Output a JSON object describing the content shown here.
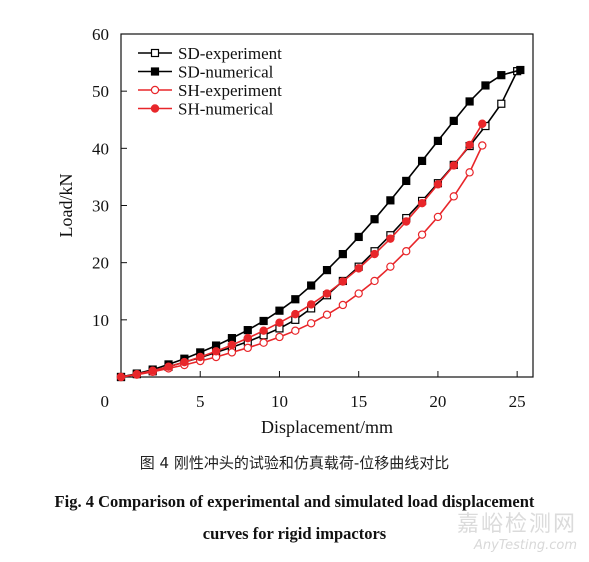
{
  "chart_data": {
    "type": "line",
    "xlabel": "Displacement/mm",
    "ylabel": "Load/kN",
    "xlim": [
      0,
      26
    ],
    "ylim": [
      0,
      60
    ],
    "xticks": [
      0,
      5,
      10,
      15,
      20,
      25
    ],
    "yticks": [
      10,
      20,
      30,
      40,
      50,
      60
    ],
    "legend": "top-left",
    "grid": false,
    "series": [
      {
        "name": "SD-experiment",
        "color": "#000000",
        "marker": "square-open",
        "x": [
          0,
          1,
          2,
          3,
          4,
          5,
          6,
          7,
          8,
          9,
          10,
          11,
          12,
          13,
          14,
          15,
          16,
          17,
          18,
          19,
          20,
          21,
          22,
          23,
          24,
          25
        ],
        "y": [
          0,
          0.5,
          1.0,
          1.8,
          2.6,
          3.4,
          4.3,
          5.2,
          6.2,
          7.3,
          8.5,
          10.0,
          12.0,
          14.3,
          16.8,
          19.3,
          22.0,
          24.8,
          27.8,
          30.8,
          33.9,
          37.1,
          40.4,
          43.9,
          47.8,
          53.5
        ]
      },
      {
        "name": "SD-numerical",
        "color": "#000000",
        "marker": "square-filled",
        "x": [
          0,
          1,
          2,
          3,
          4,
          5,
          6,
          7,
          8,
          9,
          10,
          11,
          12,
          13,
          14,
          15,
          16,
          17,
          18,
          19,
          20,
          21,
          22,
          23,
          24,
          25.2
        ],
        "y": [
          0,
          0.6,
          1.3,
          2.2,
          3.2,
          4.3,
          5.5,
          6.8,
          8.2,
          9.8,
          11.6,
          13.6,
          16.0,
          18.7,
          21.5,
          24.5,
          27.6,
          30.9,
          34.3,
          37.8,
          41.3,
          44.8,
          48.2,
          51.0,
          52.8,
          53.7
        ]
      },
      {
        "name": "SH-experiment",
        "color": "#e8262a",
        "marker": "circle-open",
        "x": [
          0,
          1,
          2,
          3,
          4,
          5,
          6,
          7,
          8,
          9,
          10,
          11,
          12,
          13,
          14,
          15,
          16,
          17,
          18,
          19,
          20,
          21,
          22,
          22.8
        ],
        "y": [
          0,
          0.4,
          0.9,
          1.5,
          2.1,
          2.8,
          3.5,
          4.3,
          5.1,
          6.0,
          7.0,
          8.1,
          9.4,
          10.9,
          12.6,
          14.6,
          16.8,
          19.3,
          22.0,
          24.9,
          28.0,
          31.6,
          35.8,
          40.5
        ]
      },
      {
        "name": "SH-numerical",
        "color": "#e8262a",
        "marker": "circle-filled",
        "x": [
          0,
          1,
          2,
          3,
          4,
          5,
          6,
          7,
          8,
          9,
          10,
          11,
          12,
          13,
          14,
          15,
          16,
          17,
          18,
          19,
          20,
          21,
          22,
          22.8
        ],
        "y": [
          0,
          0.5,
          1.1,
          1.8,
          2.6,
          3.5,
          4.5,
          5.6,
          6.8,
          8.1,
          9.5,
          11.0,
          12.7,
          14.6,
          16.7,
          19.0,
          21.5,
          24.2,
          27.2,
          30.4,
          33.7,
          37.0,
          40.6,
          44.3
        ]
      }
    ]
  },
  "captions": {
    "cn": "图 4   刚性冲头的试验和仿真载荷-位移曲线对比",
    "en_line1": "Fig. 4   Comparison of experimental and simulated load displacement",
    "en_line2": "curves for rigid impactors"
  },
  "watermark": {
    "cn": "嘉峪检测网",
    "en": "AnyTesting.com"
  }
}
